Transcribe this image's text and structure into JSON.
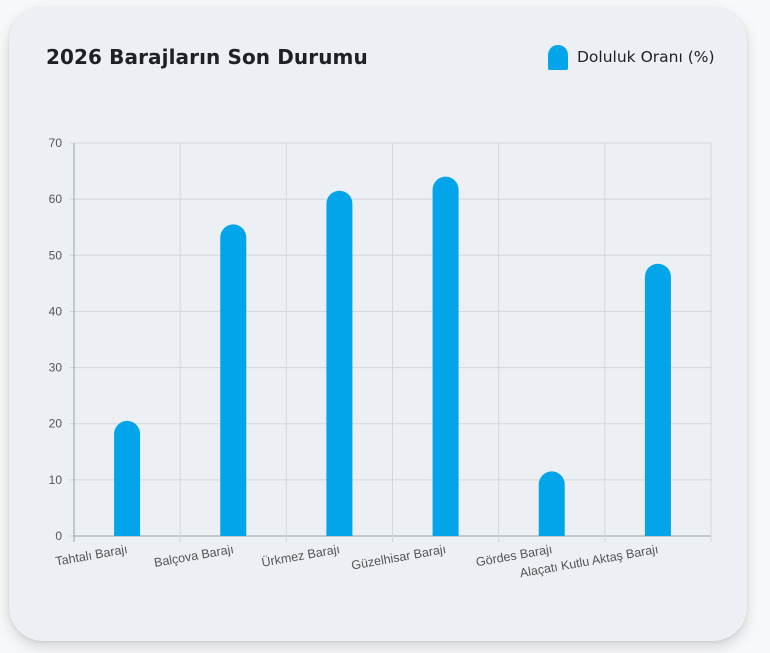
{
  "colors": {
    "bar": "#03a5ea",
    "grid": "#d3d7dc",
    "axis": "#9aa0a7",
    "card": "#eceff3",
    "text": "#1d2024"
  },
  "chart_data": {
    "type": "bar",
    "title": "2026 Barajların Son Durumu",
    "xlabel": "",
    "ylabel": "",
    "ylim": [
      0,
      70
    ],
    "yticks": [
      0,
      10,
      20,
      30,
      40,
      50,
      60,
      70
    ],
    "grid": true,
    "legend_position": "top-right",
    "categories": [
      "Tahtalı Barajı",
      "Balçova Barajı",
      "Ürkmez Barajı",
      "Güzelhisar Barajı",
      "Gördes Barajı",
      "Alaçatı Kutlu Aktaş Barajı"
    ],
    "series": [
      {
        "name": "Doluluk Oranı (%)",
        "values": [
          20.5,
          55.5,
          61.5,
          64,
          11.5,
          48.5
        ]
      }
    ]
  }
}
